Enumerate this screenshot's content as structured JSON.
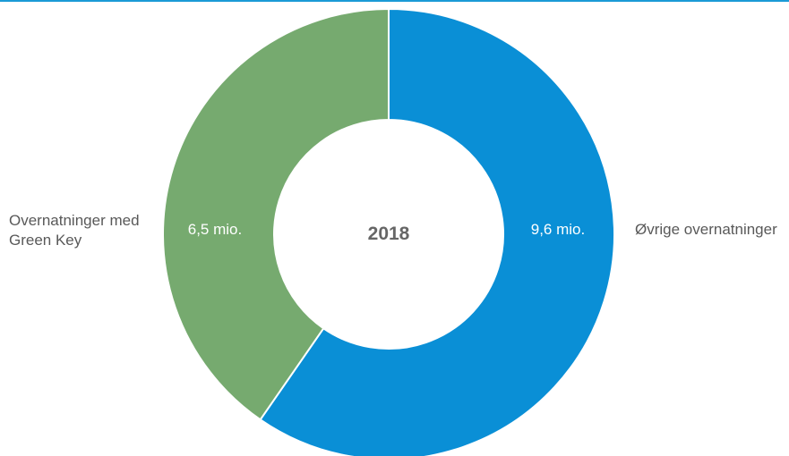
{
  "chart_data": {
    "type": "pie",
    "variant": "donut",
    "center_label": "2018",
    "slices": [
      {
        "label": "Øvrige overnatninger",
        "value": 9.6,
        "value_label": "9,6 mio.",
        "color": "#0a8fd6"
      },
      {
        "label": "Overnatninger med Green Key",
        "label_lines": [
          "Overnatninger med",
          "Green Key"
        ],
        "value": 6.5,
        "value_label": "6,5 mio.",
        "color": "#76aa6f"
      }
    ],
    "start_angle_deg": 0,
    "direction": "clockwise",
    "legend": "none"
  },
  "colors": {
    "top_rule": "#1a9ad6",
    "label_text": "#595959",
    "center_text": "#666666"
  }
}
